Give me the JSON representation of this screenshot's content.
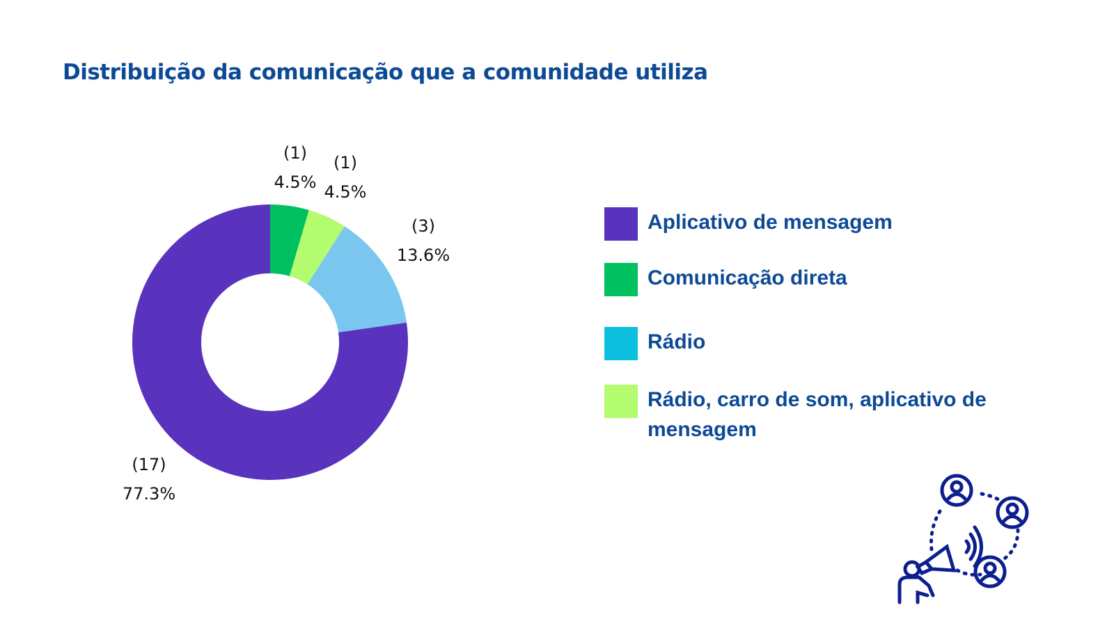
{
  "title": "Distribuição da comunicação que a comunidade utiliza",
  "chart_data": {
    "type": "pie",
    "donut": true,
    "title": "Distribuição da comunicação que a comunidade utiliza",
    "legend_position": "right",
    "slices": [
      {
        "label": "Comunicação direta",
        "value": 1,
        "percent": "4.5%",
        "count_label": "(1)",
        "color": "#00c060"
      },
      {
        "label": "Rádio, carro de som, aplicativo de mensagem",
        "value": 1,
        "percent": "4.5%",
        "count_label": "(1)",
        "color": "#b3fb6f"
      },
      {
        "label": "Rádio",
        "value": 3,
        "percent": "13.6%",
        "count_label": "(3)",
        "color": "#7ac6ef"
      },
      {
        "label": "Aplicativo de mensagem",
        "value": 17,
        "percent": "77.3%",
        "count_label": "(17)",
        "color": "#5933bd"
      }
    ]
  },
  "legend": [
    {
      "label": "Aplicativo de mensagem",
      "color": "#5933bd"
    },
    {
      "label": "Comunicação direta",
      "color": "#00c060"
    },
    {
      "label": "Rádio",
      "color": "#0ec0e0"
    },
    {
      "label": "Rádio, carro de som, aplicativo de mensagem",
      "color": "#b3fb6f"
    }
  ],
  "illustration": {
    "icon": "community-megaphone-icon",
    "color": "#0d1f8f"
  }
}
